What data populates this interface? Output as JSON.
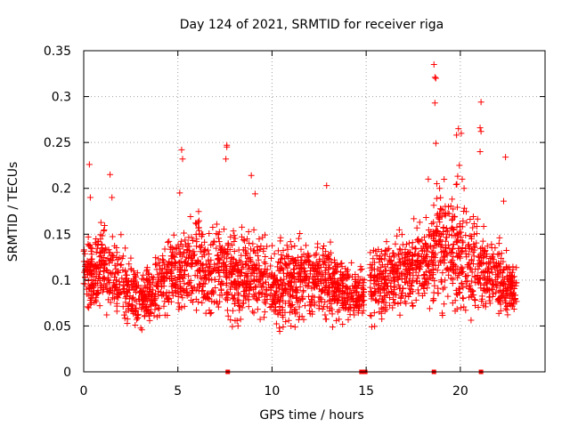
{
  "chart_data": {
    "type": "scatter",
    "title": "Day 124 of 2021, SRMTID for receiver riga",
    "xlabel": "GPS time / hours",
    "ylabel": "SRMTID / TECUs",
    "xlim": [
      0,
      24.5
    ],
    "ylim": [
      0,
      0.35
    ],
    "x_ticks": [
      0,
      5,
      10,
      15,
      20
    ],
    "x_tick_labels": [
      "0",
      "5",
      "10",
      "15",
      "20"
    ],
    "y_ticks": [
      0,
      0.05,
      0.1,
      0.15,
      0.2,
      0.25,
      0.3,
      0.35
    ],
    "y_tick_labels": [
      "0",
      "0.05",
      "0.1",
      "0.15",
      "0.2",
      "0.25",
      "0.3",
      "0.35"
    ],
    "grid": true,
    "marker": "+",
    "series_color": "#ff0000",
    "data_gap_hours": [
      14.9,
      15.2
    ],
    "baseline_markers_x": [
      7.65,
      14.75,
      14.95,
      18.6,
      21.1
    ],
    "envelope_hours": [
      0,
      1,
      2,
      3,
      4,
      5,
      6,
      7,
      8,
      9,
      10,
      11,
      12,
      13,
      14,
      14.8,
      15.2,
      16,
      17,
      18,
      19,
      20,
      21,
      22,
      23
    ],
    "envelope_low": [
      0.055,
      0.05,
      0.04,
      0.035,
      0.045,
      0.05,
      0.045,
      0.045,
      0.045,
      0.045,
      0.03,
      0.035,
      0.045,
      0.045,
      0.045,
      0.05,
      0.035,
      0.04,
      0.05,
      0.05,
      0.04,
      0.04,
      0.05,
      0.05,
      0.05
    ],
    "envelope_high": [
      0.16,
      0.17,
      0.15,
      0.12,
      0.14,
      0.17,
      0.19,
      0.18,
      0.17,
      0.17,
      0.16,
      0.16,
      0.16,
      0.15,
      0.13,
      0.12,
      0.16,
      0.16,
      0.17,
      0.19,
      0.23,
      0.22,
      0.17,
      0.16,
      0.12
    ],
    "outliers": [
      {
        "x": 0.3,
        "y": 0.226
      },
      {
        "x": 0.35,
        "y": 0.19
      },
      {
        "x": 1.4,
        "y": 0.215
      },
      {
        "x": 1.5,
        "y": 0.19
      },
      {
        "x": 5.2,
        "y": 0.242
      },
      {
        "x": 5.25,
        "y": 0.232
      },
      {
        "x": 5.1,
        "y": 0.195
      },
      {
        "x": 7.6,
        "y": 0.247
      },
      {
        "x": 7.6,
        "y": 0.245
      },
      {
        "x": 7.55,
        "y": 0.232
      },
      {
        "x": 8.9,
        "y": 0.214
      },
      {
        "x": 9.1,
        "y": 0.194
      },
      {
        "x": 12.9,
        "y": 0.203
      },
      {
        "x": 18.3,
        "y": 0.21
      },
      {
        "x": 18.6,
        "y": 0.335
      },
      {
        "x": 18.65,
        "y": 0.321
      },
      {
        "x": 18.7,
        "y": 0.32
      },
      {
        "x": 18.65,
        "y": 0.293
      },
      {
        "x": 18.7,
        "y": 0.249
      },
      {
        "x": 18.75,
        "y": 0.205
      },
      {
        "x": 18.9,
        "y": 0.2
      },
      {
        "x": 19.8,
        "y": 0.258
      },
      {
        "x": 19.9,
        "y": 0.265
      },
      {
        "x": 20.05,
        "y": 0.26
      },
      {
        "x": 19.95,
        "y": 0.225
      },
      {
        "x": 20.1,
        "y": 0.21
      },
      {
        "x": 20.2,
        "y": 0.2
      },
      {
        "x": 21.1,
        "y": 0.294
      },
      {
        "x": 21.05,
        "y": 0.266
      },
      {
        "x": 21.1,
        "y": 0.262
      },
      {
        "x": 21.05,
        "y": 0.24
      },
      {
        "x": 22.4,
        "y": 0.234
      },
      {
        "x": 22.3,
        "y": 0.186
      }
    ],
    "series": [
      {
        "name": "SRMTID",
        "generator_seed": 124,
        "points_per_hour": 120
      }
    ]
  }
}
